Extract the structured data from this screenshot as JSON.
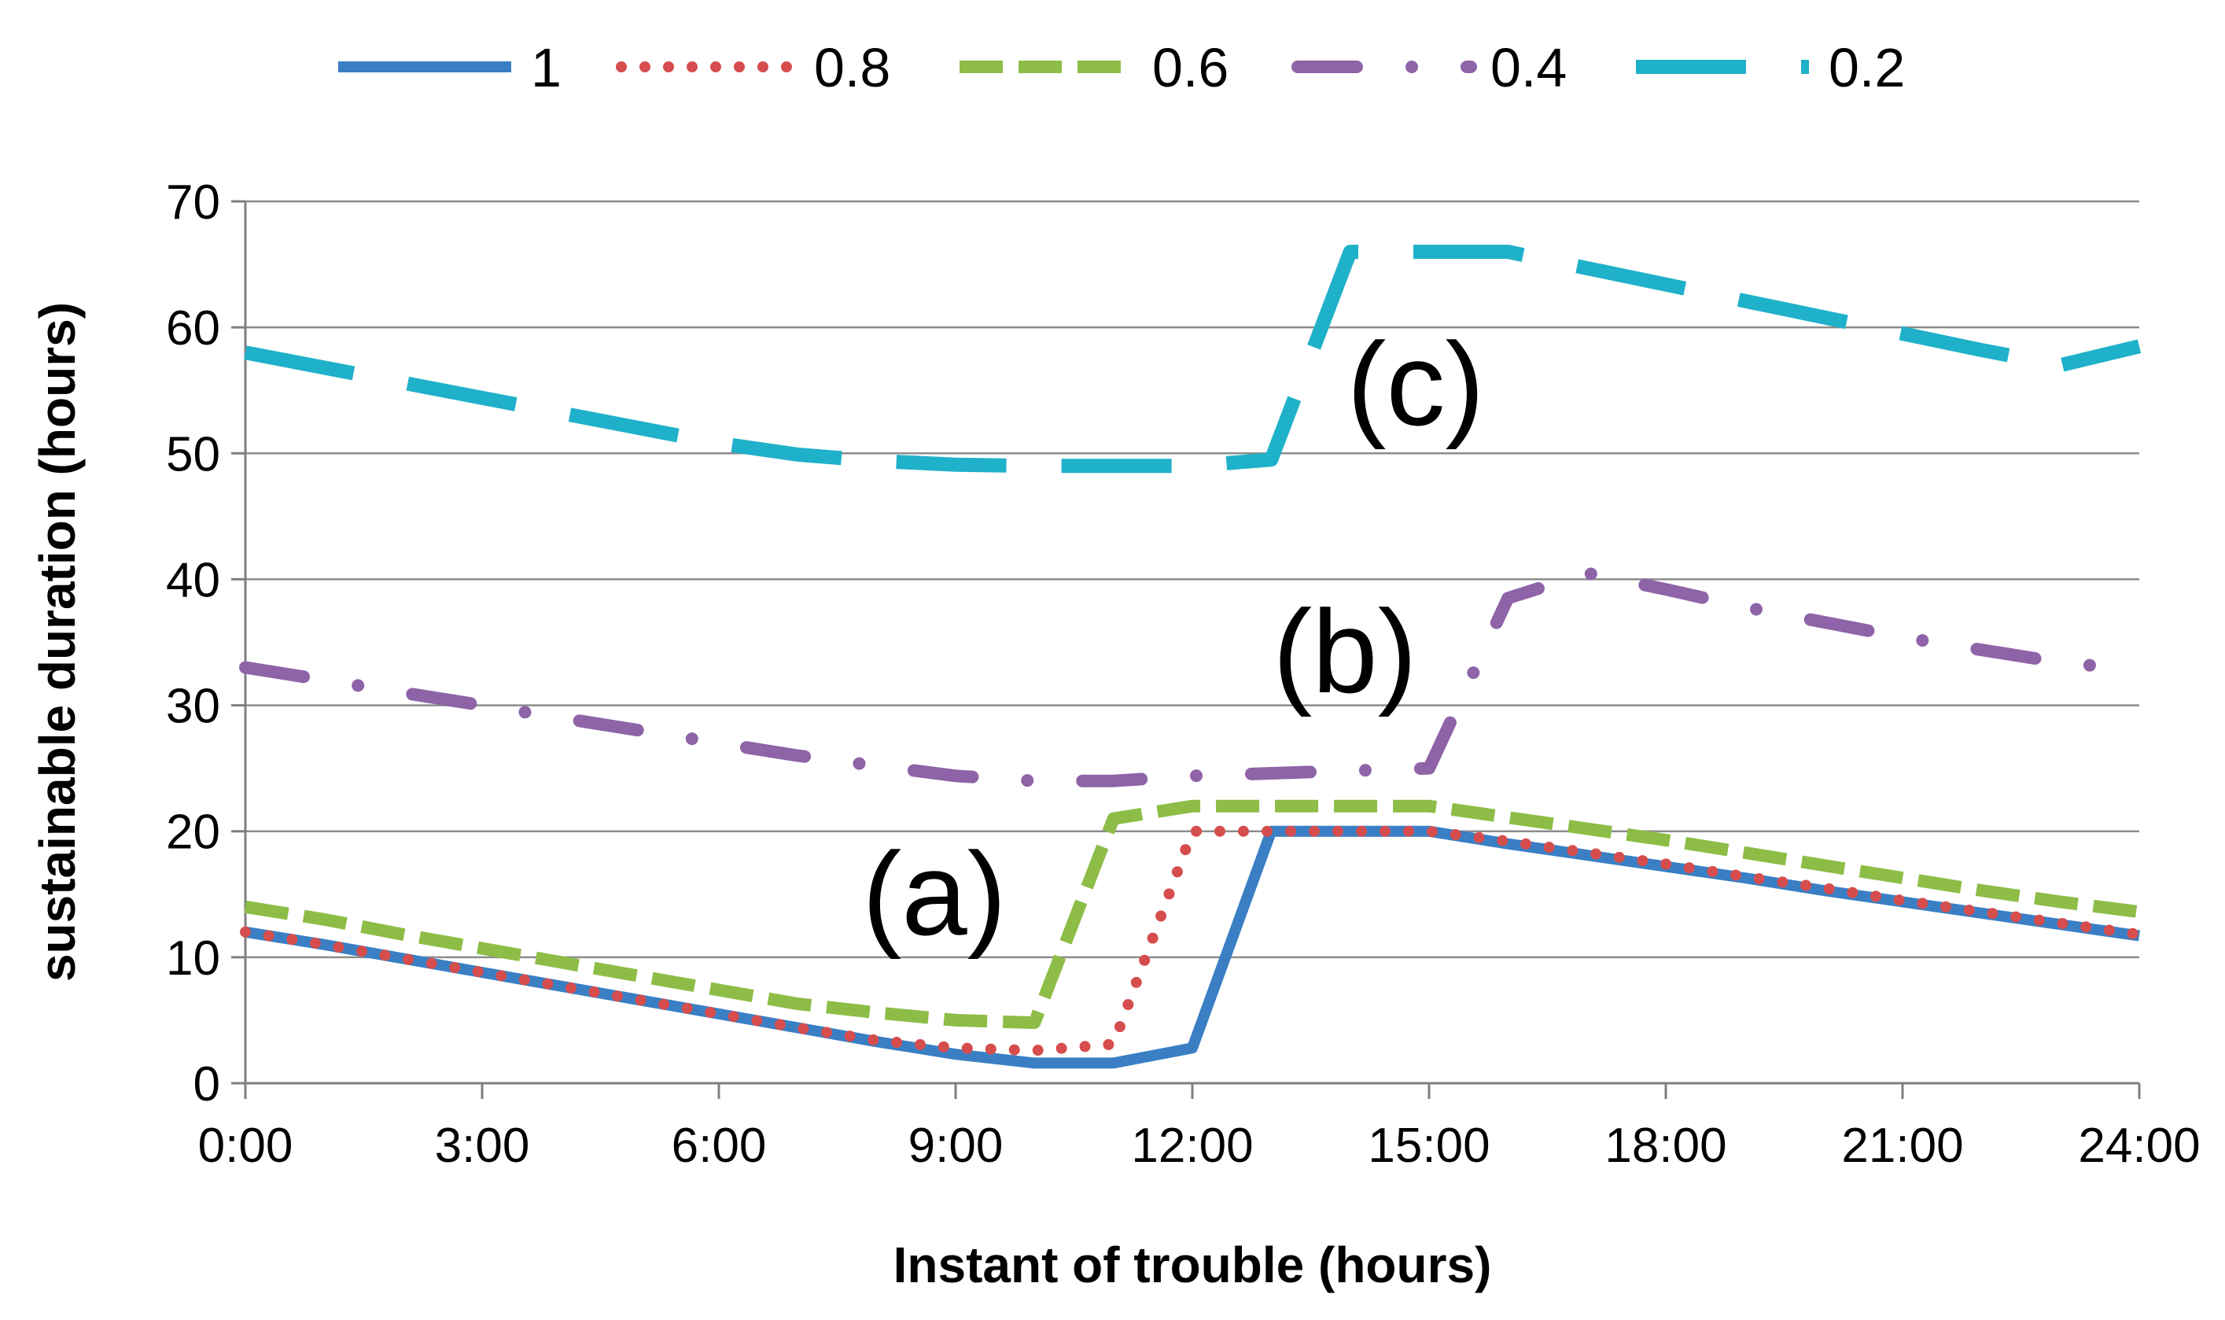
{
  "chart_data": {
    "type": "line",
    "title": "",
    "xlabel": "Instant of trouble (hours)",
    "ylabel": "sustainable duration (hours)",
    "xlim": [
      0,
      24
    ],
    "ylim": [
      0,
      70
    ],
    "grid": true,
    "legend_position": "top",
    "x_ticks": [
      0,
      3,
      6,
      9,
      12,
      15,
      18,
      21,
      24
    ],
    "x_tick_labels": [
      "0:00",
      "3:00",
      "6:00",
      "9:00",
      "12:00",
      "15:00",
      "18:00",
      "21:00",
      "24:00"
    ],
    "y_ticks": [
      0,
      10,
      20,
      30,
      40,
      50,
      60,
      70
    ],
    "y_tick_labels": [
      "0",
      "10",
      "20",
      "30",
      "40",
      "50",
      "60",
      "70"
    ],
    "x": [
      0,
      1,
      2,
      3,
      4,
      5,
      6,
      7,
      8,
      9,
      10,
      11,
      12,
      13,
      14,
      15,
      16,
      17,
      18,
      19,
      20,
      21,
      22,
      23,
      24
    ],
    "series": [
      {
        "name": "1",
        "color": "#3a7fc4",
        "style": "solid",
        "values": [
          12,
          11,
          9.9,
          8.8,
          7.7,
          6.6,
          5.5,
          4.4,
          3.3,
          2.3,
          1.6,
          1.6,
          2.8,
          20,
          20,
          20,
          19,
          18.1,
          17.2,
          16.3,
          15.3,
          14.4,
          13.5,
          12.6,
          11.7
        ]
      },
      {
        "name": "0.8",
        "color": "#d64d4d",
        "style": "dotted",
        "values": [
          12,
          11,
          9.9,
          8.8,
          7.7,
          6.6,
          5.5,
          4.4,
          3.4,
          2.8,
          2.6,
          3.1,
          20,
          20,
          20,
          20,
          19.2,
          18.3,
          17.4,
          16.4,
          15.5,
          14.5,
          13.6,
          12.7,
          11.8
        ]
      },
      {
        "name": "0.6",
        "color": "#8dbd47",
        "style": "dashed",
        "values": [
          14,
          13,
          11.8,
          10.7,
          9.6,
          8.5,
          7.4,
          6.3,
          5.6,
          5,
          4.8,
          21,
          22,
          22,
          22,
          22,
          21.1,
          20.2,
          19.3,
          18.3,
          17.3,
          16.3,
          15.3,
          14.4,
          13.6
        ]
      },
      {
        "name": "0.4",
        "color": "#8e63a8",
        "style": "dashdot",
        "values": [
          33,
          32,
          31,
          30,
          29,
          28,
          27,
          26,
          25.2,
          24.4,
          24,
          24,
          24.4,
          24.6,
          24.8,
          25,
          38.5,
          40.5,
          39.2,
          37.8,
          36.6,
          35.4,
          34.4,
          33.4,
          32.8
        ]
      },
      {
        "name": "0.2",
        "color": "#1fb1c9",
        "style": "longdash",
        "values": [
          58,
          56.8,
          55.6,
          54.4,
          53.2,
          52,
          50.8,
          49.9,
          49.4,
          49.1,
          49,
          49,
          49,
          49.5,
          66,
          66,
          66,
          64.7,
          63.4,
          62.1,
          60.8,
          59.5,
          58.2,
          57,
          58.5
        ]
      }
    ],
    "annotations": [
      "(a)",
      "(b)",
      "(c)"
    ]
  }
}
